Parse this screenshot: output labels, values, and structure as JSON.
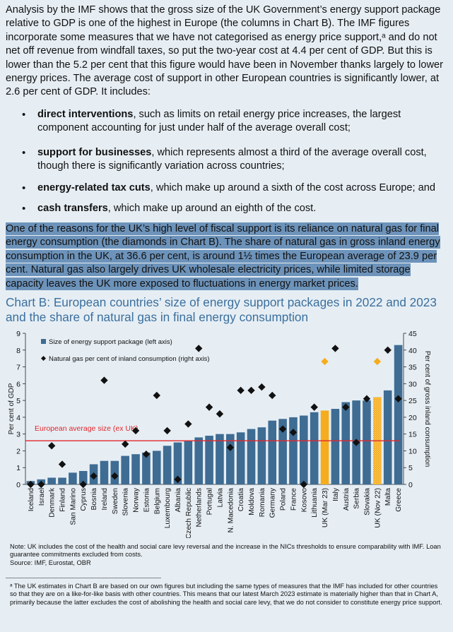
{
  "paragraph1": "Analysis by the IMF shows that the gross size of the UK Government’s energy support package relative to GDP is one of the highest in Europe (the columns in Chart B). The IMF figures incorporate some measures that we have not categorised as energy price support,ᵃ and do not net off revenue from windfall taxes, so put the two-year cost at 4.4 per cent of GDP. But this is lower than the 5.2 per cent that this figure would have been in November thanks largely to lower energy prices. The average cost of support in other European countries is significantly lower, at 2.6 per cent of GDP. It includes:",
  "bullets": [
    {
      "bold": "direct interventions",
      "text": ", such as limits on retail energy price increases, the largest component accounting for just under half of the average overall cost;"
    },
    {
      "bold": "support for businesses",
      "text": ", which represents almost a third of the average overall cost, though there is significantly variation across countries;"
    },
    {
      "bold": "energy-related tax cuts",
      "text": ", which make up around a sixth of the cost across Europe; and"
    },
    {
      "bold": "cash transfers",
      "text": ", which make up around an eighth of the cost."
    }
  ],
  "bullet_symbol": "•",
  "paragraph2": "One of the reasons for the UK’s high level of fiscal support is its reliance on natural gas for final energy consumption (the diamonds in Chart B). The share of natural gas in gross inland energy consumption in the UK, at 36.6 per cent, is around 1½ times the European average of 23.9 per cent. Natural gas also largely drives UK wholesale electricity prices, while limited storage capacity leaves the UK more exposed to fluctuations in energy market prices.",
  "chart_title": "Chart B: European countries’ size of energy support packages in 2022 and 2023 and the share of natural gas in final energy consumption",
  "chart_data": {
    "type": "bar",
    "categories": [
      "Iceland",
      "Israel",
      "Denmark",
      "Finland",
      "San Marino",
      "Cyprus",
      "Bosnia",
      "Ireland",
      "Sweden",
      "Slovenia",
      "Norway",
      "Estonia",
      "Belgium",
      "Luxembourg",
      "Albania",
      "Czech Republic",
      "Netherlands",
      "Portugal",
      "Latvia",
      "N. Macedonia",
      "Croatia",
      "Moldova",
      "Romania",
      "Germany",
      "Poland",
      "France",
      "Kosovo",
      "Lithuania",
      "UK (Mar 23)",
      "Italy",
      "Austria",
      "Serbia",
      "Slovakia",
      "UK (Nov 22)",
      "Malta",
      "Greece"
    ],
    "series": [
      {
        "name": "Size of energy support package (left axis)",
        "axis": "left",
        "type": "bar",
        "values": [
          0.2,
          0.3,
          0.4,
          0.4,
          0.7,
          0.8,
          1.2,
          1.4,
          1.4,
          1.7,
          1.8,
          1.9,
          2.0,
          2.3,
          2.5,
          2.6,
          2.8,
          2.9,
          3.0,
          3.0,
          3.1,
          3.3,
          3.4,
          3.8,
          3.9,
          4.0,
          4.1,
          4.3,
          4.4,
          4.5,
          4.9,
          5.0,
          5.0,
          5.2,
          5.6,
          8.3
        ]
      },
      {
        "name": "Natural gas per cent of inland consumption (right axis)",
        "axis": "right",
        "type": "scatter",
        "values": [
          0,
          0,
          11.5,
          6,
          null,
          0,
          2.5,
          31,
          2.5,
          12,
          16,
          9,
          26.5,
          16,
          1.5,
          18,
          40.5,
          23,
          21,
          11,
          28,
          28,
          29,
          26.5,
          16.5,
          15.5,
          0,
          23,
          36.6,
          40.5,
          23,
          12.5,
          25.5,
          36.6,
          40,
          25.5
        ]
      }
    ],
    "highlight_categories": [
      "UK (Mar 23)",
      "UK (Nov 22)"
    ],
    "hatched_categories": [
      "UK (Nov 22)"
    ],
    "reference_line": {
      "label": "European average size (ex UK)",
      "value": 2.6
    },
    "ylabel": "Per cent of GDP",
    "y2label": "Per cent of gross inland consumption",
    "ylim": [
      0,
      9
    ],
    "y2lim": [
      0,
      45
    ],
    "yticks": [
      0,
      1,
      2,
      3,
      4,
      5,
      6,
      7,
      8,
      9
    ],
    "y2ticks": [
      0,
      5,
      10,
      15,
      20,
      25,
      30,
      35,
      40,
      45
    ],
    "legend_placement": "top-left",
    "grid": false,
    "colors": {
      "bar": "#3e6c93",
      "uk_bar": "#f5ad1e",
      "diamond": "#111111",
      "uk_diamond": "#f5ad1e",
      "reference": "#e3262a"
    }
  },
  "note1": "Note: UK includes the cost of the health and social care levy reversal and the increase in the NICs thresholds to ensure comparability with IMF. Loan guarantee commitments excluded from costs.",
  "source": "Source: IMF, Eurostat, OBR",
  "footnote": "ᵃ The UK estimates in Chart B are based on our own figures but including the same types of measures that the IMF has included for other countries so that they are on a like-for-like basis with other countries. This means that our latest March 2023 estimate is materially higher than that in Chart A, primarily because the latter excludes the cost of abolishing the health and social care levy, that we do not consider to constitute energy price support."
}
